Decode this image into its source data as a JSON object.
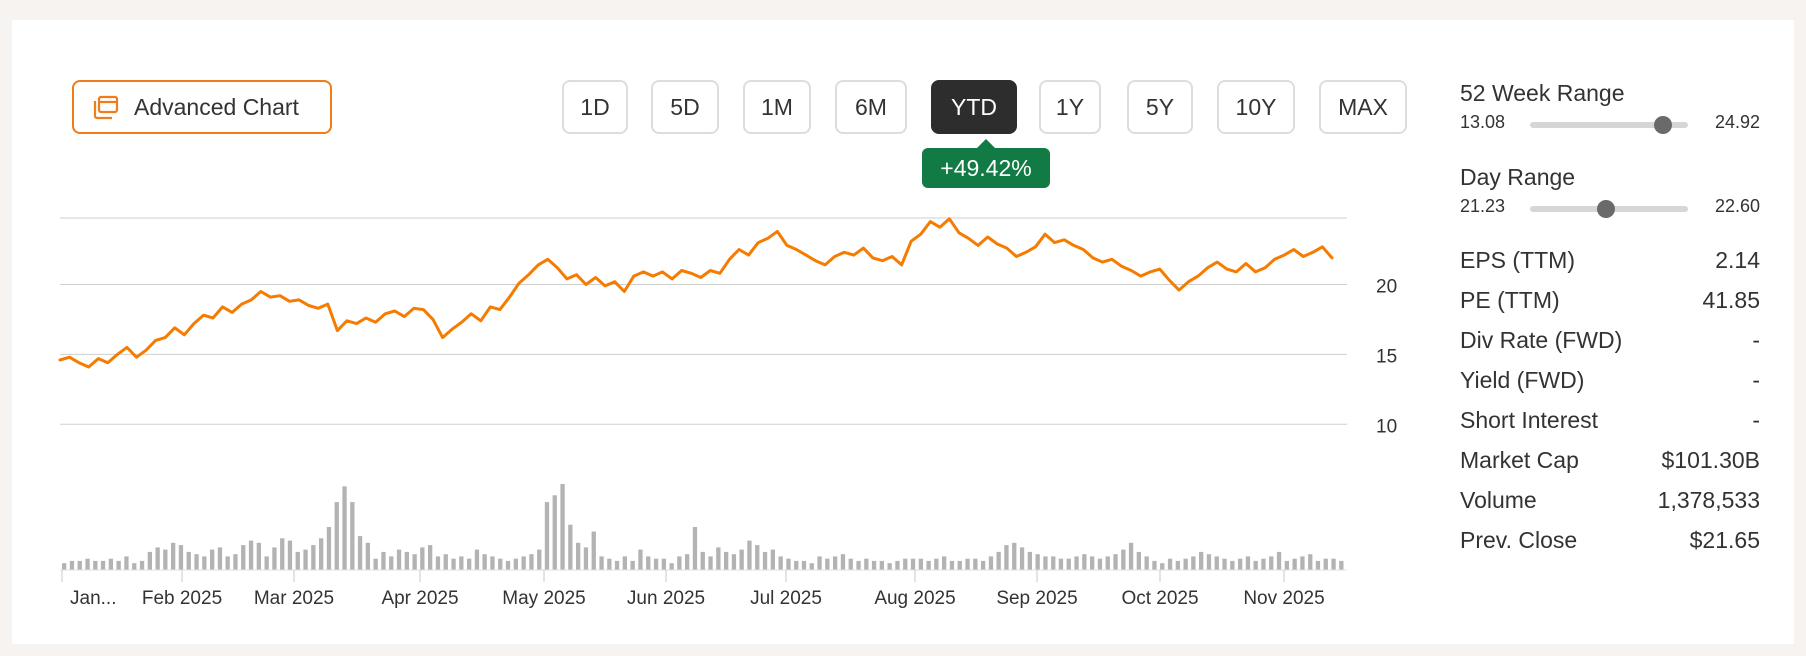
{
  "toolbar": {
    "advanced_chart_label": "Advanced Chart",
    "ranges": [
      "1D",
      "5D",
      "1M",
      "6M",
      "YTD",
      "1Y",
      "5Y",
      "10Y",
      "MAX"
    ],
    "active_range": "YTD",
    "change_badge": "+49.42%"
  },
  "colors": {
    "accent": "#f07c1c",
    "line": "#f57c00",
    "positive": "#127a44",
    "volume": "#b3b3b3",
    "grid": "#cfcfcf"
  },
  "chart_data": {
    "type": "line",
    "x_ticks": [
      "Jan...",
      "Feb 2025",
      "Mar 2025",
      "Apr 2025",
      "May 2025",
      "Jun 2025",
      "Jul 2025",
      "Aug 2025",
      "Sep 2025",
      "Oct 2025",
      "Nov 2025"
    ],
    "y_ticks": [
      20,
      15,
      10
    ],
    "ylim": [
      7.3,
      24.9
    ],
    "series": [
      {
        "values": [
          14.6,
          14.8,
          14.4,
          14.1,
          14.7,
          14.4,
          15.0,
          15.5,
          14.8,
          15.3,
          16.0,
          16.2,
          16.9,
          16.4,
          17.2,
          17.8,
          17.6,
          18.4,
          18.0,
          18.6,
          18.9,
          19.5,
          19.1,
          19.2,
          18.8,
          18.9,
          18.5,
          18.3,
          18.6,
          16.7,
          17.4,
          17.2,
          17.6,
          17.3,
          17.9,
          18.1,
          17.7,
          18.3,
          18.2,
          17.5,
          16.2,
          16.8,
          17.3,
          17.9,
          17.4,
          18.4,
          18.2,
          19.1,
          20.1,
          20.7,
          21.4,
          21.8,
          21.2,
          20.4,
          20.7,
          20.0,
          20.5,
          19.9,
          20.2,
          19.5,
          20.6,
          20.9,
          20.6,
          20.9,
          20.4,
          21.0,
          20.8,
          20.5,
          21.0,
          20.8,
          21.8,
          22.5,
          22.1,
          23.0,
          23.3,
          23.8,
          22.8,
          22.5,
          22.1,
          21.7,
          21.4,
          22.0,
          22.3,
          22.1,
          22.6,
          21.9,
          21.7,
          22.0,
          21.4,
          23.1,
          23.6,
          24.5,
          24.1,
          24.7,
          23.7,
          23.3,
          22.8,
          23.4,
          22.9,
          22.6,
          22.0,
          22.3,
          22.7,
          23.6,
          23.0,
          23.2,
          22.8,
          22.5,
          21.9,
          21.6,
          21.8,
          21.3,
          21.0,
          20.6,
          20.9,
          21.1,
          20.3,
          19.6,
          20.2,
          20.6,
          21.2,
          21.6,
          21.1,
          20.9,
          21.5,
          20.9,
          21.2,
          21.8,
          22.1,
          22.5,
          22.0,
          22.3,
          22.7,
          21.9
        ]
      }
    ],
    "volume": [
      3,
      4,
      4,
      5,
      4,
      4,
      5,
      4,
      6,
      3,
      4,
      8,
      10,
      9,
      12,
      11,
      8,
      7,
      6,
      9,
      10,
      6,
      7,
      11,
      13,
      12,
      6,
      10,
      14,
      13,
      8,
      9,
      11,
      14,
      19,
      30,
      37,
      30,
      15,
      12,
      5,
      8,
      6,
      9,
      8,
      7,
      10,
      11,
      6,
      7,
      5,
      6,
      5,
      9,
      7,
      6,
      5,
      4,
      5,
      6,
      7,
      9,
      30,
      33,
      38,
      20,
      12,
      10,
      17,
      6,
      5,
      4,
      6,
      4,
      9,
      6,
      5,
      5,
      3,
      6,
      7,
      19,
      8,
      6,
      10,
      8,
      7,
      9,
      13,
      11,
      8,
      9,
      6,
      5,
      4,
      4,
      3,
      6,
      5,
      6,
      7,
      5,
      4,
      5,
      4,
      4,
      3,
      4,
      5,
      5,
      5,
      4,
      5,
      6,
      4,
      4,
      5,
      5,
      4,
      6,
      8,
      11,
      12,
      10,
      8,
      7,
      6,
      6,
      5,
      5,
      6,
      7,
      6,
      5,
      6,
      7,
      9,
      12,
      8,
      6,
      4,
      3,
      5,
      4,
      5,
      6,
      8,
      7,
      6,
      5,
      4,
      5,
      6,
      4,
      5,
      6,
      8,
      4,
      5,
      6,
      7,
      4,
      5,
      5,
      4
    ]
  },
  "day_range_52w": {
    "title": "52 Week Range",
    "low": "13.08",
    "high": "24.92",
    "fraction": 0.84
  },
  "day_range": {
    "title": "Day Range",
    "low": "21.23",
    "high": "22.60",
    "fraction": 0.48
  },
  "stats": [
    {
      "label": "EPS (TTM)",
      "value": "2.14"
    },
    {
      "label": "PE (TTM)",
      "value": "41.85"
    },
    {
      "label": "Div Rate (FWD)",
      "value": "-"
    },
    {
      "label": "Yield (FWD)",
      "value": "-"
    },
    {
      "label": "Short Interest",
      "value": "-"
    },
    {
      "label": "Market Cap",
      "value": "$101.30B"
    },
    {
      "label": "Volume",
      "value": "1,378,533"
    },
    {
      "label": "Prev. Close",
      "value": "$21.65"
    }
  ]
}
